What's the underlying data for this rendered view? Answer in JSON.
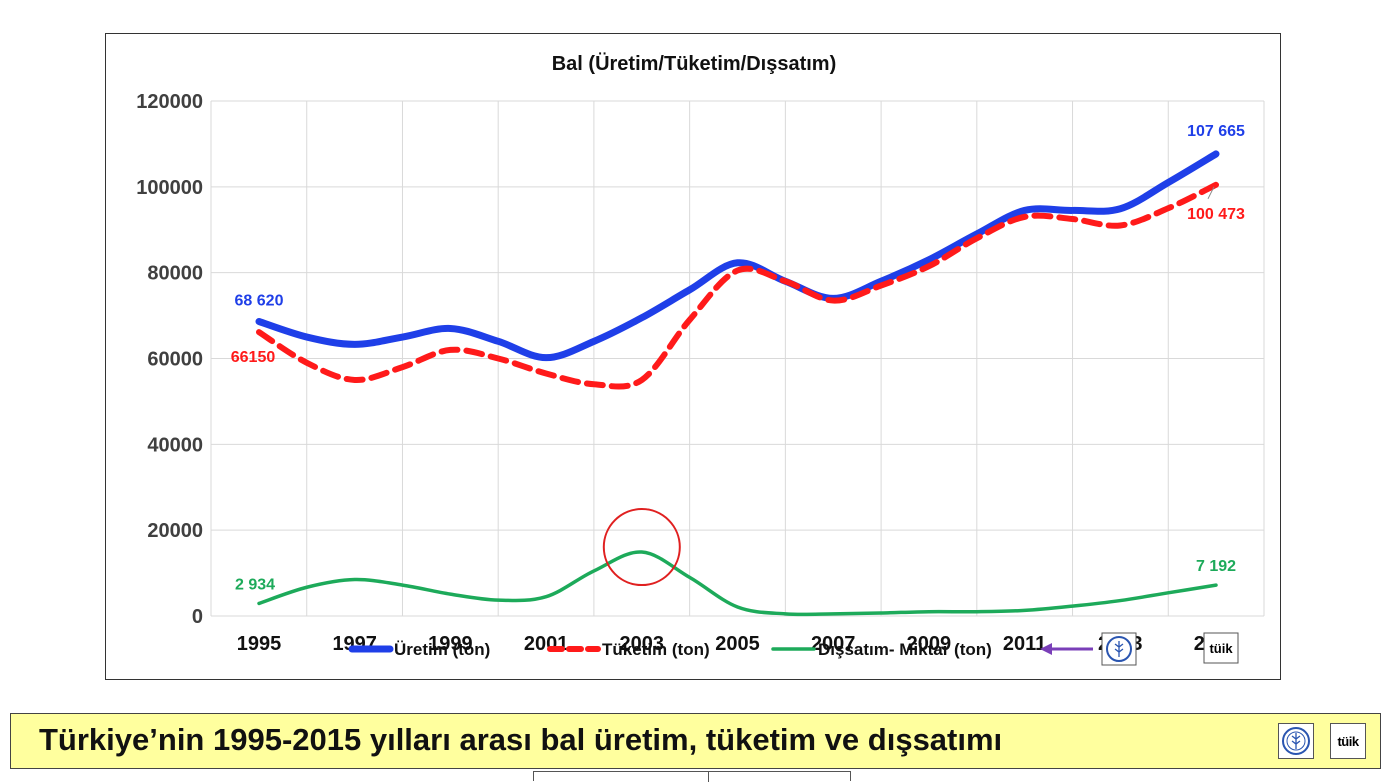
{
  "chart_data": {
    "type": "line",
    "title": "Bal (Üretim/Tüketim/Dışsatım)",
    "x": [
      1995,
      1996,
      1997,
      1998,
      1999,
      2000,
      2001,
      2002,
      2003,
      2004,
      2005,
      2006,
      2007,
      2008,
      2009,
      2010,
      2011,
      2012,
      2013,
      2014,
      2015
    ],
    "x_tick_labels": [
      "1995",
      "1997",
      "1999",
      "2001",
      "2003",
      "2005",
      "2007",
      "2009",
      "2011",
      "2013",
      "2015"
    ],
    "y_tick_labels": [
      "0",
      "20000",
      "40000",
      "60000",
      "80000",
      "100000",
      "120000"
    ],
    "ylim": [
      0,
      120000
    ],
    "grid": true,
    "legend_position": "bottom",
    "series": [
      {
        "name": "Üretim  (ton)",
        "color": "#1f3fe8",
        "style": "solid",
        "values": [
          68620,
          65000,
          63300,
          65000,
          67000,
          64000,
          60200,
          64000,
          69500,
          76000,
          82300,
          78000,
          74000,
          78000,
          83000,
          89000,
          94500,
          94500,
          94900,
          101000,
          107665
        ]
      },
      {
        "name": "Tüketim  (ton)",
        "color": "#ff1a1a",
        "style": "dashed",
        "values": [
          66150,
          59000,
          55000,
          58000,
          62000,
          60000,
          56500,
          54000,
          55000,
          69000,
          80500,
          78000,
          73500,
          77000,
          81500,
          88000,
          93000,
          92500,
          91000,
          95000,
          100473
        ]
      },
      {
        "name": "Dışsatım-  Miktar  (ton)",
        "color": "#1daa5a",
        "style": "solid",
        "values": [
          2934,
          6700,
          8500,
          7200,
          5100,
          3700,
          4500,
          10500,
          14900,
          9000,
          2100,
          500,
          500,
          700,
          1000,
          1000,
          1300,
          2300,
          3600,
          5400,
          7192
        ]
      }
    ],
    "annotations": [
      {
        "text": "68 620",
        "series": 0,
        "x": 1995,
        "color": "#1f3fe8"
      },
      {
        "text": "66150",
        "series": 1,
        "x": 1995,
        "color": "#ff1a1a"
      },
      {
        "text": "107 665",
        "series": 0,
        "x": 2015,
        "color": "#1f3fe8"
      },
      {
        "text": "100 473",
        "series": 1,
        "x": 2015,
        "color": "#ff1a1a"
      },
      {
        "text": "2 934",
        "series": 2,
        "x": 1995,
        "color": "#1daa5a"
      },
      {
        "text": "7 192",
        "series": 2,
        "x": 2015,
        "color": "#1daa5a"
      }
    ],
    "highlight": {
      "shape": "circle",
      "color": "#e02020",
      "x": 2003,
      "series": 2
    }
  },
  "logos": {
    "fao": "fao-logo-icon",
    "tuik": "tuik-logo-icon",
    "tuik_text": "tüik"
  },
  "legend_arrow_color": "#7a3fb8",
  "caption": {
    "text": "Türkiye’nin 1995-2015 yılları arası  bal üretim, tüketim ve dışsatımı",
    "background": "#ffff9e"
  }
}
